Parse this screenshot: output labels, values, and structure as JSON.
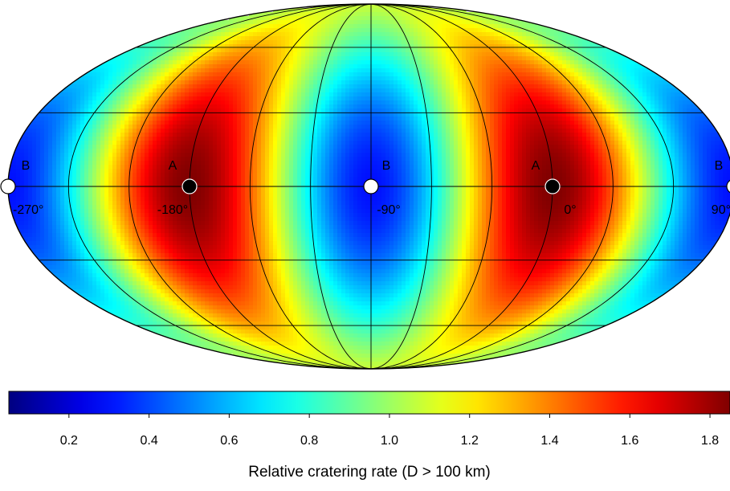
{
  "chart_data": {
    "type": "heatmap",
    "projection": "mollweide",
    "title": "",
    "color_scale": {
      "label": "Relative cratering rate (D > 100 km)",
      "min": 0.05,
      "max": 1.85,
      "ticks": [
        0.2,
        0.4,
        0.6,
        0.8,
        1.0,
        1.2,
        1.4,
        1.6,
        1.8
      ],
      "tick_labels": [
        "0.2",
        "0.4",
        "0.6",
        "0.8",
        "1.0",
        "1.2",
        "1.4",
        "1.6",
        "1.8"
      ],
      "colormap": "jet"
    },
    "field_model": {
      "description": "cratering rate varies with longitude; peaks at apex points A, minimum at antapex points B",
      "apex_longitudes": [
        -180,
        0
      ],
      "antapex_longitudes": [
        -270,
        -90,
        90
      ],
      "peak_value": 1.85,
      "minimum_value": 0.3
    },
    "longitude_labels": [
      "-270°",
      "-180°",
      "-90°",
      "0°",
      "90°"
    ],
    "longitude_label_values": [
      -270,
      -180,
      -90,
      0,
      90
    ],
    "points": [
      {
        "label": "B",
        "lon": -270,
        "lat": 0,
        "marker": "white"
      },
      {
        "label": "A",
        "lon": -180,
        "lat": 0,
        "marker": "black"
      },
      {
        "label": "B",
        "lon": -90,
        "lat": 0,
        "marker": "white"
      },
      {
        "label": "A",
        "lon": 0,
        "lat": 0,
        "marker": "black"
      },
      {
        "label": "B",
        "lon": 90,
        "lat": 0,
        "marker": "white"
      }
    ],
    "graticule": {
      "meridian_step_deg": 30,
      "parallels_deg": [
        -60,
        -30,
        0,
        30,
        60
      ]
    },
    "map_center_longitude": -90
  }
}
